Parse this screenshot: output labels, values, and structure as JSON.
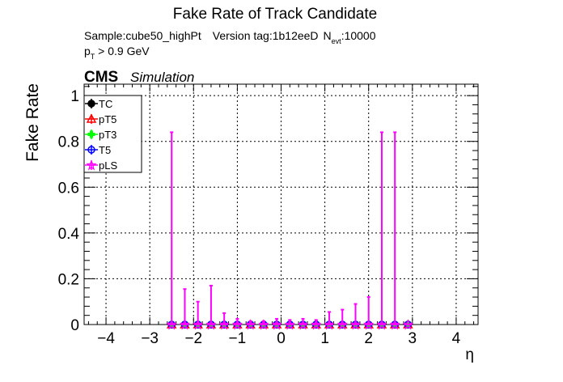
{
  "chart_data": {
    "type": "scatter",
    "title": "Fake Rate of Track Candidate",
    "header": {
      "sample": "Sample:cube50_highPt",
      "version": "Version tag:1b12eeD",
      "nevt_label": "N",
      "nevt_sub": "evt",
      "nevt_value": ":10000",
      "pt_label": "p",
      "pt_sub": "T",
      "pt_cut": " > 0.9 GeV"
    },
    "cms_label": "CMS",
    "cms_sub": "Simulation",
    "xlabel": "η",
    "ylabel": "Fake Rate",
    "xlim": [
      -4.5,
      4.5
    ],
    "ylim": [
      0,
      1.05
    ],
    "xticks": [
      -4,
      -3,
      -2,
      -1,
      0,
      1,
      2,
      3,
      4
    ],
    "xtick_labels": [
      "−4",
      "−3",
      "−2",
      "−1",
      "0",
      "1",
      "2",
      "3",
      "4"
    ],
    "yticks": [
      0,
      0.2,
      0.4,
      0.6,
      0.8,
      1
    ],
    "ytick_labels": [
      "0",
      "0.2",
      "0.4",
      "0.6",
      "0.8",
      "1"
    ],
    "grid": true,
    "legend_position": "top-left",
    "x": [
      -2.5,
      -2.2,
      -1.9,
      -1.6,
      -1.3,
      -1.0,
      -0.7,
      -0.4,
      -0.1,
      0.2,
      0.5,
      0.8,
      1.1,
      1.4,
      1.7,
      2.0,
      2.3,
      2.6,
      2.9
    ],
    "series": [
      {
        "name": "TC",
        "color": "#000000",
        "marker": "circle",
        "values": [
          0,
          0,
          0,
          0,
          0,
          0,
          0,
          0,
          0,
          0,
          0,
          0,
          0,
          0,
          0,
          0,
          0,
          0,
          0
        ]
      },
      {
        "name": "pT5",
        "color": "#ff0000",
        "marker": "triangle",
        "values": [
          0,
          0,
          0,
          0,
          0,
          0,
          0,
          0,
          0,
          0,
          0,
          0,
          0,
          0,
          0,
          0,
          0,
          0,
          0
        ]
      },
      {
        "name": "pT3",
        "color": "#00ff00",
        "marker": "cross",
        "values": [
          0,
          0,
          0,
          0,
          0,
          0,
          0,
          0,
          0,
          0,
          0,
          0,
          0,
          0,
          0,
          0,
          0,
          0,
          0
        ]
      },
      {
        "name": "T5",
        "color": "#0000ff",
        "marker": "circle",
        "values": [
          0,
          0,
          0,
          0,
          0,
          0,
          0,
          0,
          0,
          0,
          0,
          0,
          0,
          0,
          0,
          0,
          0,
          0,
          0
        ]
      },
      {
        "name": "pLS",
        "color": "#ff00ff",
        "marker": "star",
        "values": [
          0,
          0,
          0,
          0,
          0,
          0,
          0,
          0,
          0,
          0,
          0,
          0,
          0,
          0,
          0,
          0,
          0,
          0,
          0
        ],
        "err_hi": [
          0.84,
          0.155,
          0.1,
          0.17,
          0.05,
          0.025,
          0.015,
          0.015,
          0.025,
          0.02,
          0.025,
          0.02,
          0.055,
          0.065,
          0.09,
          0.12,
          0.84,
          0.84,
          0.0
        ]
      }
    ]
  }
}
